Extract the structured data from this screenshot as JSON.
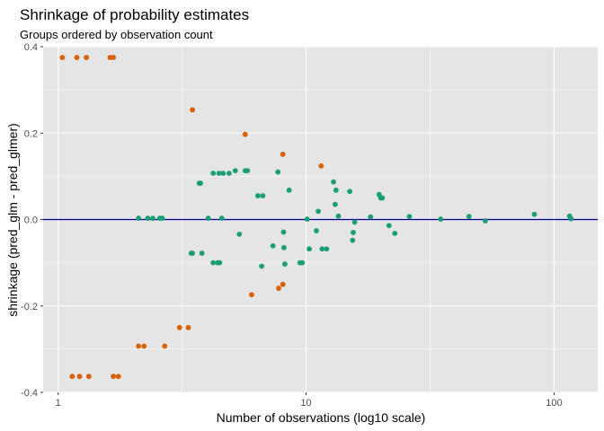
{
  "chart_data": {
    "type": "scatter",
    "title": "Shrinkage of probability estimates",
    "subtitle": "Groups ordered by observation count",
    "xlabel": "Number of observations (log10 scale)",
    "ylabel": "shrinkage (pred_glm - pred_glmer)",
    "x_scale": "log10",
    "xlim": [
      0.87,
      150
    ],
    "ylim": [
      -0.4,
      0.4
    ],
    "x_ticks": [
      {
        "value": 1,
        "label": "1"
      },
      {
        "value": 10,
        "label": "10"
      },
      {
        "value": 100,
        "label": "100"
      }
    ],
    "y_ticks": [
      {
        "value": -0.4,
        "label": "-0.4"
      },
      {
        "value": -0.2,
        "label": "-0.2"
      },
      {
        "value": 0.0,
        "label": "0.0"
      },
      {
        "value": 0.2,
        "label": "0.2"
      },
      {
        "value": 0.4,
        "label": "0.4"
      }
    ],
    "reference_line": {
      "y": 0,
      "color": "#00008B"
    },
    "grid": true,
    "panel_color": "#E5E5E5",
    "legend": "none",
    "series": [
      {
        "color": "#D95F02",
        "points": [
          [
            1.04,
            0.375
          ],
          [
            1.19,
            0.375
          ],
          [
            1.3,
            0.375
          ],
          [
            1.62,
            0.375
          ],
          [
            1.67,
            0.375
          ],
          [
            1.14,
            -0.363
          ],
          [
            1.22,
            -0.363
          ],
          [
            1.33,
            -0.363
          ],
          [
            1.67,
            -0.363
          ],
          [
            1.75,
            -0.363
          ],
          [
            3.48,
            0.254
          ],
          [
            5.68,
            0.197
          ],
          [
            8.06,
            0.151
          ],
          [
            11.5,
            0.124
          ],
          [
            2.11,
            -0.293
          ],
          [
            2.22,
            -0.293
          ],
          [
            2.69,
            -0.293
          ],
          [
            3.09,
            -0.25
          ],
          [
            3.35,
            -0.25
          ],
          [
            6.03,
            -0.174
          ],
          [
            7.75,
            -0.159
          ],
          [
            8.06,
            -0.15
          ]
        ]
      },
      {
        "color": "#1B9E77",
        "points": [
          [
            2.11,
            0.003
          ],
          [
            2.3,
            0.003
          ],
          [
            2.41,
            0.003
          ],
          [
            2.57,
            0.003
          ],
          [
            2.63,
            0.003
          ],
          [
            4.03,
            0.003
          ],
          [
            4.57,
            0.003
          ],
          [
            3.44,
            -0.078
          ],
          [
            3.48,
            -0.078
          ],
          [
            3.8,
            -0.078
          ],
          [
            4.22,
            -0.1
          ],
          [
            4.4,
            -0.1
          ],
          [
            4.48,
            -0.1
          ],
          [
            3.71,
            0.084
          ],
          [
            3.75,
            0.084
          ],
          [
            4.22,
            0.107
          ],
          [
            4.45,
            0.107
          ],
          [
            4.63,
            0.107
          ],
          [
            4.89,
            0.107
          ],
          [
            5.18,
            0.113
          ],
          [
            5.68,
            0.113
          ],
          [
            5.8,
            0.113
          ],
          [
            5.38,
            -0.034
          ],
          [
            6.39,
            0.055
          ],
          [
            6.69,
            0.055
          ],
          [
            6.62,
            -0.108
          ],
          [
            7.35,
            -0.061
          ],
          [
            7.7,
            0.11
          ],
          [
            8.11,
            -0.029
          ],
          [
            8.14,
            -0.065
          ],
          [
            8.21,
            -0.103
          ],
          [
            8.54,
            0.068
          ],
          [
            9.45,
            -0.1
          ],
          [
            9.65,
            -0.1
          ],
          [
            10.1,
            0.001
          ],
          [
            10.3,
            -0.068
          ],
          [
            11.0,
            -0.026
          ],
          [
            11.2,
            0.019
          ],
          [
            11.6,
            -0.068
          ],
          [
            12.1,
            -0.068
          ],
          [
            12.9,
            0.087
          ],
          [
            13.1,
            0.035
          ],
          [
            13.2,
            0.068
          ],
          [
            13.5,
            0.008
          ],
          [
            15.0,
            0.065
          ],
          [
            15.4,
            -0.048
          ],
          [
            15.5,
            -0.03
          ],
          [
            15.7,
            -0.006
          ],
          [
            18.2,
            0.006
          ],
          [
            19.7,
            0.058
          ],
          [
            20.0,
            0.05
          ],
          [
            20.3,
            0.05
          ],
          [
            21.6,
            -0.014
          ],
          [
            22.8,
            -0.032
          ],
          [
            26.1,
            0.007
          ],
          [
            34.9,
            0.001
          ],
          [
            45.4,
            0.007
          ],
          [
            52.8,
            -0.003
          ],
          [
            83.3,
            0.012
          ],
          [
            115.5,
            0.008
          ],
          [
            117.0,
            0.002
          ]
        ]
      }
    ]
  }
}
